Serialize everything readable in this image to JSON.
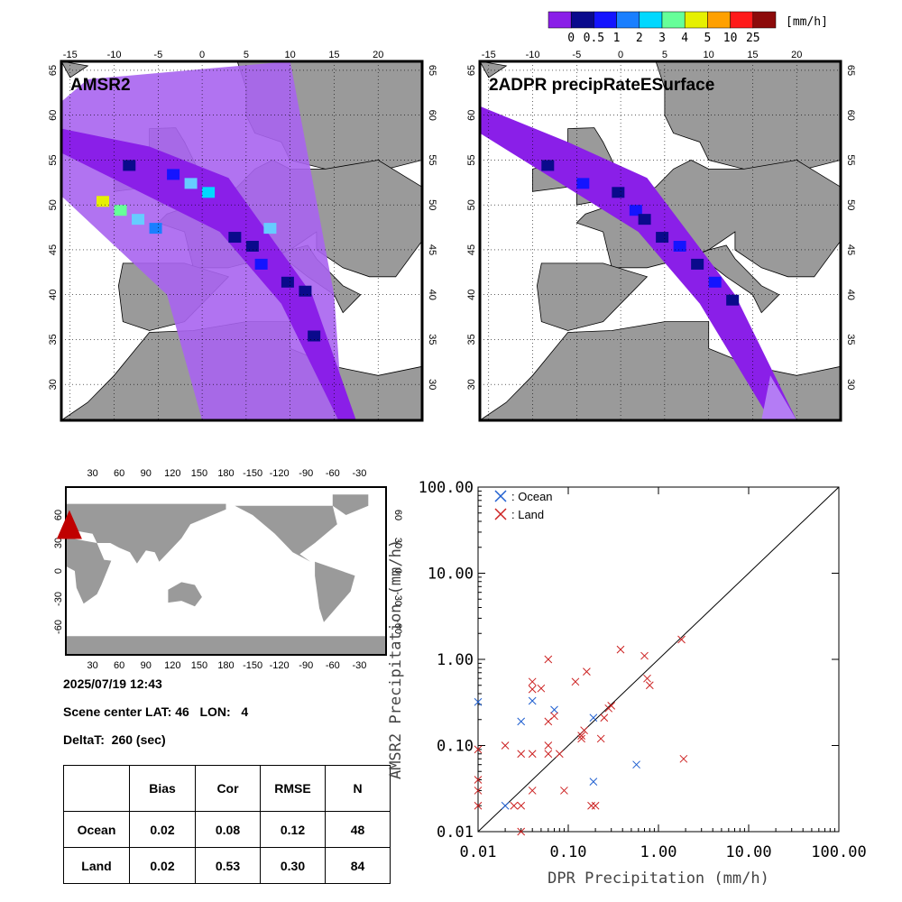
{
  "colorbar": {
    "colors": [
      "#8a1fe8",
      "#0a0a8c",
      "#1414ff",
      "#1a7fff",
      "#00d8ff",
      "#66ff99",
      "#e6f000",
      "#ffa000",
      "#ff1a1a",
      "#8c0a0a"
    ],
    "tick_labels": [
      "0",
      "0.5",
      "1",
      "2",
      "3",
      "4",
      "5",
      "10",
      "25"
    ],
    "unit": "[mm/h]"
  },
  "maps": {
    "lon_ticks": [
      "-15",
      "-10",
      "-5",
      "0",
      "5",
      "10",
      "15",
      "20"
    ],
    "lat_ticks": [
      "65",
      "60",
      "55",
      "50",
      "45",
      "40",
      "35",
      "30"
    ],
    "left_title": "AMSR2",
    "right_title": "2ADPR precipRateESurface"
  },
  "world_map": {
    "top_ticks": [
      "30",
      "60",
      "90",
      "120",
      "150",
      "180",
      "-150",
      "-120",
      "-90",
      "-60",
      "-30"
    ],
    "lat_ticks": [
      "60",
      "30",
      "0",
      "-30",
      "-60"
    ],
    "marker_lat": 46,
    "marker_lon": 4
  },
  "info": {
    "datetime": "2025/07/19 12:43",
    "scene_center": "Scene center LAT: 46   LON:   4",
    "delta_t": "DeltaT:  260 (sec)"
  },
  "stats": {
    "headers": [
      "",
      "Bias",
      "Cor",
      "RMSE",
      "N"
    ],
    "rows": [
      [
        "Ocean",
        "0.02",
        "0.08",
        "0.12",
        "48"
      ],
      [
        "Land",
        "0.02",
        "0.53",
        "0.30",
        "84"
      ]
    ]
  },
  "chart_data": {
    "type": "scatter",
    "xlabel": "DPR Precipitation (mm/h)",
    "ylabel": "AMSR2 Precipitation (mm/h)",
    "xscale": "log",
    "yscale": "log",
    "xlim": [
      0.01,
      100
    ],
    "ylim": [
      0.01,
      100
    ],
    "x_tick_labels": [
      "0.01",
      "0.10",
      "1.00",
      "10.00",
      "100.00"
    ],
    "y_tick_labels": [
      "0.01",
      "0.10",
      "1.00",
      "10.00",
      "100.00"
    ],
    "legend_position": "top-left",
    "one_to_one_line": true,
    "series": [
      {
        "name": ": Ocean",
        "color": "#1f5fd0",
        "points": [
          [
            0.01,
            0.32
          ],
          [
            0.02,
            0.02
          ],
          [
            0.03,
            0.19
          ],
          [
            0.04,
            0.33
          ],
          [
            0.07,
            0.26
          ],
          [
            0.19,
            0.21
          ],
          [
            0.19,
            0.038
          ],
          [
            0.57,
            0.06
          ]
        ]
      },
      {
        "name": ": Land",
        "color": "#cc2020",
        "points": [
          [
            0.01,
            0.09
          ],
          [
            0.01,
            0.04
          ],
          [
            0.01,
            0.03
          ],
          [
            0.01,
            0.02
          ],
          [
            0.02,
            0.1
          ],
          [
            0.025,
            0.02
          ],
          [
            0.03,
            0.08
          ],
          [
            0.03,
            0.02
          ],
          [
            0.03,
            0.01
          ],
          [
            0.04,
            0.55
          ],
          [
            0.04,
            0.45
          ],
          [
            0.04,
            0.08
          ],
          [
            0.04,
            0.03
          ],
          [
            0.05,
            0.46
          ],
          [
            0.06,
            1.0
          ],
          [
            0.06,
            0.19
          ],
          [
            0.06,
            0.1
          ],
          [
            0.06,
            0.08
          ],
          [
            0.07,
            0.22
          ],
          [
            0.08,
            0.08
          ],
          [
            0.09,
            0.03
          ],
          [
            0.12,
            0.55
          ],
          [
            0.14,
            0.13
          ],
          [
            0.14,
            0.12
          ],
          [
            0.15,
            0.15
          ],
          [
            0.16,
            0.72
          ],
          [
            0.18,
            0.02
          ],
          [
            0.2,
            0.02
          ],
          [
            0.23,
            0.12
          ],
          [
            0.25,
            0.21
          ],
          [
            0.28,
            0.27
          ],
          [
            0.3,
            0.29
          ],
          [
            0.38,
            1.3
          ],
          [
            0.7,
            1.1
          ],
          [
            0.75,
            0.6
          ],
          [
            0.8,
            0.5
          ],
          [
            1.8,
            1.7
          ],
          [
            1.9,
            0.07
          ]
        ]
      }
    ]
  }
}
